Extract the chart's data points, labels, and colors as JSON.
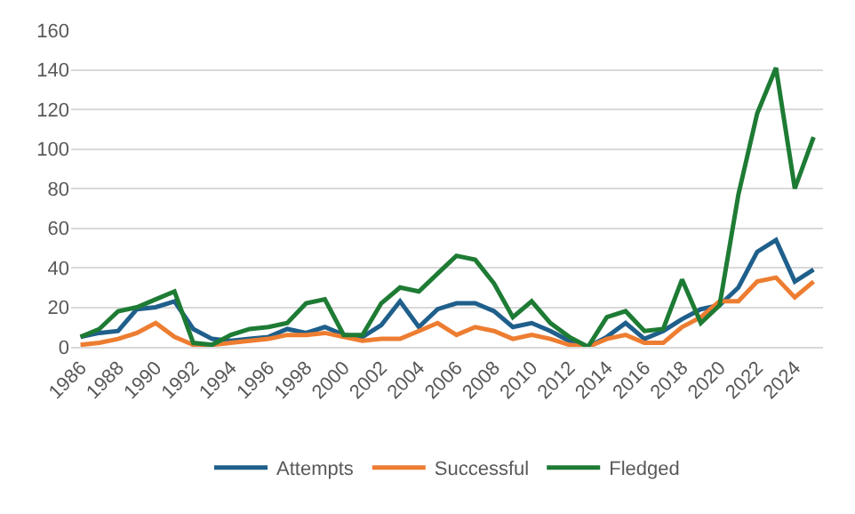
{
  "chart_data": {
    "type": "line",
    "x": [
      1986,
      1987,
      1988,
      1989,
      1990,
      1991,
      1992,
      1993,
      1994,
      1995,
      1996,
      1997,
      1998,
      1999,
      2000,
      2001,
      2002,
      2003,
      2004,
      2005,
      2006,
      2007,
      2008,
      2009,
      2010,
      2011,
      2012,
      2013,
      2014,
      2015,
      2016,
      2017,
      2018,
      2019,
      2020,
      2021,
      2022,
      2023,
      2024,
      2025
    ],
    "series": [
      {
        "name": "Attempts",
        "color": "#1f5f8b",
        "values": [
          5,
          7,
          8,
          19,
          20,
          23,
          9,
          4,
          3,
          4,
          5,
          9,
          7,
          10,
          6,
          5,
          11,
          23,
          10,
          19,
          22,
          22,
          18,
          10,
          12,
          8,
          3,
          0,
          5,
          12,
          4,
          8,
          14,
          19,
          21,
          30,
          48,
          54,
          33,
          39
        ]
      },
      {
        "name": "Successful",
        "color": "#ed7d31",
        "values": [
          1,
          2,
          4,
          7,
          12,
          5,
          1,
          1,
          2,
          3,
          4,
          6,
          6,
          7,
          5,
          3,
          4,
          4,
          8,
          12,
          6,
          10,
          8,
          4,
          6,
          4,
          1,
          0,
          4,
          6,
          2,
          2,
          10,
          15,
          23,
          23,
          33,
          35,
          25,
          33
        ]
      },
      {
        "name": "Fledged",
        "color": "#1e7b34",
        "values": [
          5,
          9,
          18,
          20,
          24,
          28,
          2,
          1,
          6,
          9,
          10,
          12,
          22,
          24,
          6,
          6,
          22,
          30,
          28,
          37,
          46,
          44,
          32,
          15,
          23,
          12,
          5,
          0,
          15,
          18,
          8,
          9,
          34,
          12,
          21,
          77,
          118,
          141,
          80,
          106
        ]
      }
    ],
    "xlim": [
      1985.5,
      2025.5
    ],
    "xticks": [
      1986,
      1988,
      1990,
      1992,
      1994,
      1996,
      1998,
      2000,
      2002,
      2004,
      2006,
      2008,
      2010,
      2012,
      2014,
      2016,
      2018,
      2020,
      2022,
      2024
    ],
    "ylim": [
      0,
      160
    ],
    "yticks": [
      0,
      20,
      40,
      60,
      80,
      100,
      120,
      140,
      160
    ],
    "grid": "y",
    "legend": "bottom",
    "marker": "none",
    "line_style": "solid"
  }
}
